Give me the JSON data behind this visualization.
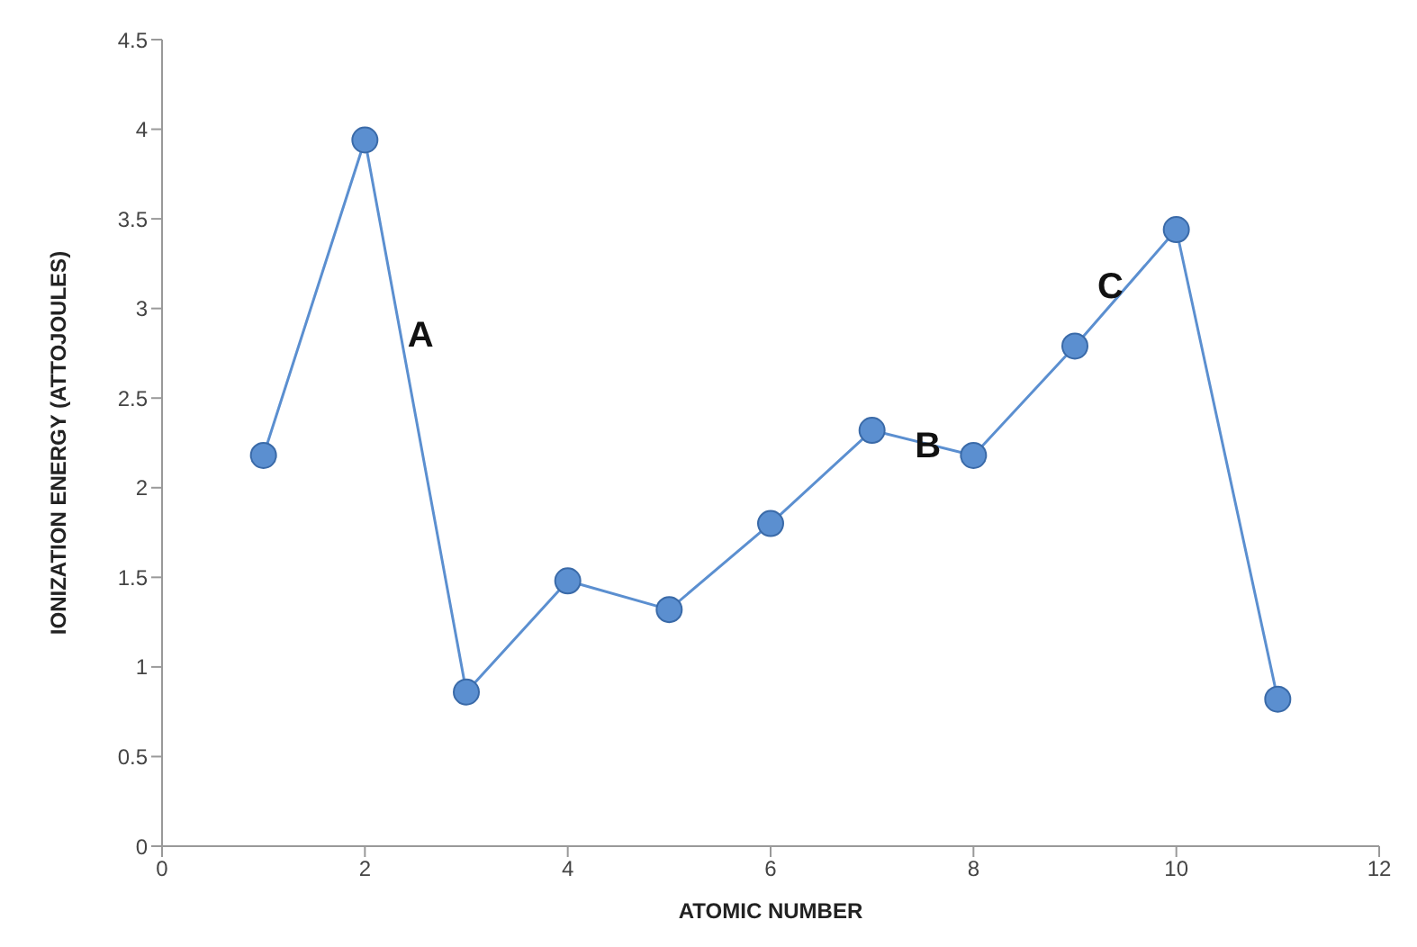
{
  "chart_data": {
    "type": "line",
    "xlabel": "ATOMIC NUMBER",
    "ylabel": "IONIZATION ENERGY  (ATTOJOULES)",
    "x": [
      1,
      2,
      3,
      4,
      5,
      6,
      7,
      8,
      9,
      10,
      11
    ],
    "series": [
      {
        "color": "#5b8fd0",
        "values": [
          2.18,
          3.94,
          0.86,
          1.48,
          1.32,
          1.8,
          2.32,
          2.18,
          2.79,
          3.44,
          0.82
        ]
      }
    ],
    "xlim": [
      0,
      12
    ],
    "xticks": [
      0,
      2,
      4,
      6,
      8,
      10,
      12
    ],
    "ylim": [
      0,
      4.5
    ],
    "yticks": [
      0,
      0.5,
      1,
      1.5,
      2,
      2.5,
      3,
      3.5,
      4,
      4.5
    ],
    "grid": false,
    "legend": false,
    "marker": "circle",
    "line_style": "solid",
    "annotations": [
      {
        "text": "A",
        "x": 2.35,
        "y": 2.86
      },
      {
        "text": "B",
        "x": 7.55,
        "y": 2.24
      },
      {
        "text": "C",
        "x": 9.35,
        "y": 3.02
      }
    ]
  }
}
